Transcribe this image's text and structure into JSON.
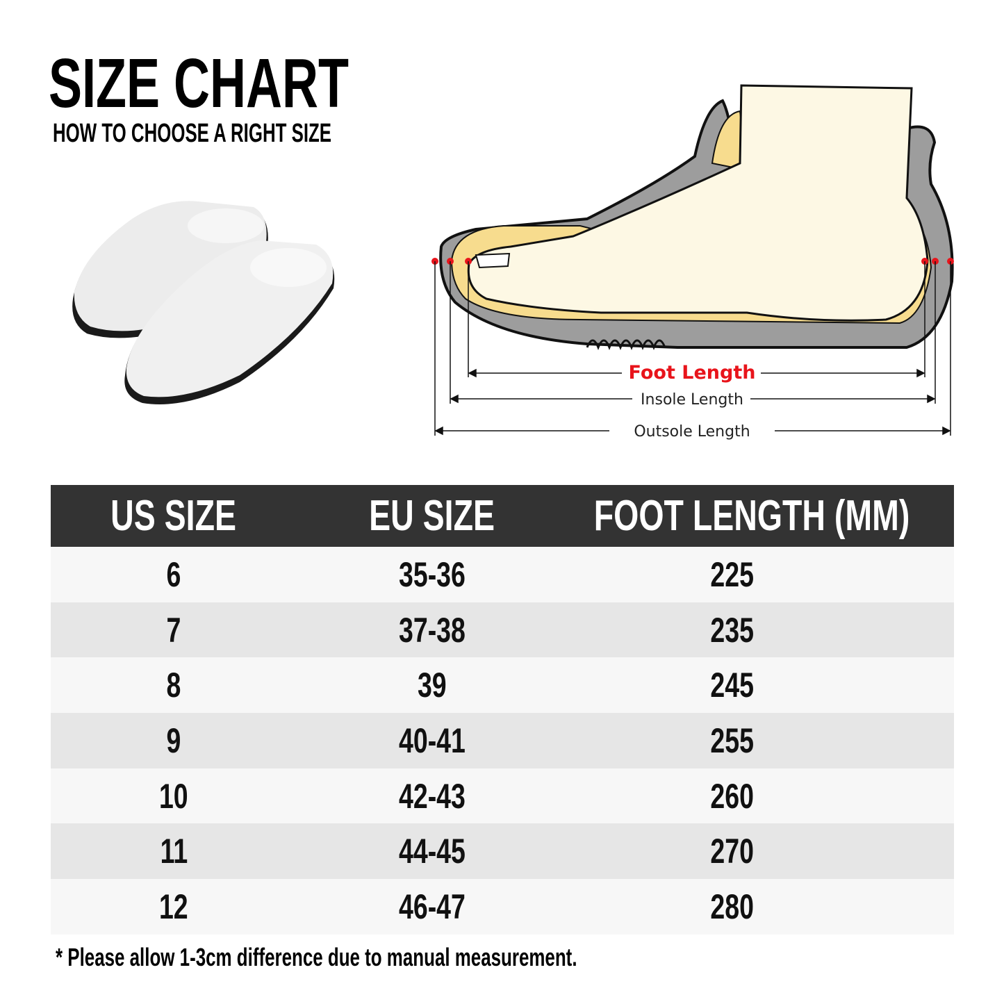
{
  "title": "SIZE CHART",
  "subtitle": "HOW TO CHOOSE A RIGHT SIZE",
  "diagram": {
    "foot_length": "Foot Length",
    "insole_length": "Insole Length",
    "outsole_length": "Outsole Length",
    "colors": {
      "accent": "#e8141b",
      "foot": "#fdf8e4",
      "insole": "#f7dc8e",
      "sole": "#9d9d9d"
    }
  },
  "table": {
    "headers": [
      "US SIZE",
      "EU SIZE",
      "FOOT LENGTH (MM)"
    ],
    "rows": [
      [
        "6",
        "35-36",
        "225"
      ],
      [
        "7",
        "37-38",
        "235"
      ],
      [
        "8",
        "39",
        "245"
      ],
      [
        "9",
        "40-41",
        "255"
      ],
      [
        "10",
        "42-43",
        "260"
      ],
      [
        "11",
        "44-45",
        "270"
      ],
      [
        "12",
        "46-47",
        "280"
      ]
    ],
    "colors": {
      "header": "#333333",
      "row_light": "#f7f7f7",
      "row_dark": "#e6e6e6"
    }
  },
  "note": "* Please allow 1-3cm difference due to manual measurement."
}
